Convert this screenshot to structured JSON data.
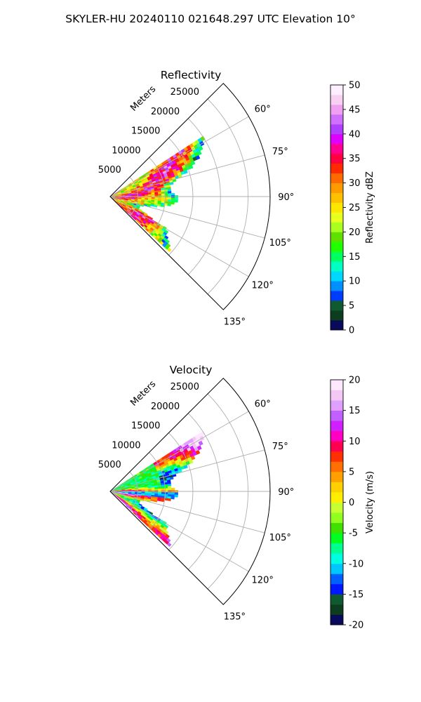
{
  "title": "SKYLER-HU  20240110  021648.297 UTC Elevation 10°",
  "chart_data": [
    {
      "type": "polar-sector",
      "title": "Reflectivity",
      "radial_label": "Meters",
      "radial_ticks": [
        "5000",
        "10000",
        "15000",
        "20000",
        "25000"
      ],
      "radial_tick_values": [
        5000,
        10000,
        15000,
        20000,
        25000
      ],
      "rlim": [
        0,
        29000
      ],
      "theta_ticks": [
        "60°",
        "75°",
        "90°",
        "105°",
        "120°",
        "135°"
      ],
      "theta_tick_values": [
        60,
        75,
        90,
        105,
        120,
        135
      ],
      "thetalim": [
        45,
        135
      ],
      "grid": true,
      "colorbar": {
        "label": "Reflectivity dBZ",
        "ticks": [
          "0",
          "5",
          "10",
          "15",
          "20",
          "25",
          "30",
          "35",
          "40",
          "45",
          "50"
        ],
        "tick_values": [
          0,
          5,
          10,
          15,
          20,
          25,
          30,
          35,
          40,
          45,
          50
        ],
        "range": [
          0,
          50
        ],
        "colors": [
          "#0a0a5a",
          "#0b3d1e",
          "#0f5a2f",
          "#003cff",
          "#0090ff",
          "#00d8ff",
          "#00ffc0",
          "#00ff60",
          "#20ff00",
          "#60e000",
          "#a8ff20",
          "#e8ff20",
          "#ffe600",
          "#ffc000",
          "#ff9a00",
          "#ff6a00",
          "#ff2a00",
          "#ff0040",
          "#ff0090",
          "#e000ff",
          "#b040ff",
          "#d070ff",
          "#f0a0f0",
          "#f8d0f0",
          "#ffeeff"
        ]
      },
      "field": {
        "theta_range": [
          57,
          133
        ],
        "typical_value": 34,
        "value_range": [
          18,
          44
        ]
      }
    },
    {
      "type": "polar-sector",
      "title": "Velocity",
      "radial_label": "Meters",
      "radial_ticks": [
        "5000",
        "10000",
        "15000",
        "20000",
        "25000"
      ],
      "radial_tick_values": [
        5000,
        10000,
        15000,
        20000,
        25000
      ],
      "rlim": [
        0,
        29000
      ],
      "theta_ticks": [
        "60°",
        "75°",
        "90°",
        "105°",
        "120°",
        "135°"
      ],
      "theta_tick_values": [
        60,
        75,
        90,
        105,
        120,
        135
      ],
      "thetalim": [
        45,
        135
      ],
      "grid": true,
      "colorbar": {
        "label": "Velocity (m/s)",
        "ticks": [
          "-20",
          "-15",
          "-10",
          "-5",
          "0",
          "5",
          "10",
          "15",
          "20"
        ],
        "tick_values": [
          -20,
          -15,
          -10,
          -5,
          0,
          5,
          10,
          15,
          20
        ],
        "range": [
          -20,
          20
        ],
        "colors": [
          "#0a0a5a",
          "#0b3d1e",
          "#0f5a2f",
          "#0018ff",
          "#0060ff",
          "#00c8ff",
          "#00ffe0",
          "#00ff90",
          "#00ff20",
          "#40e000",
          "#90ff20",
          "#c8ff30",
          "#ffee00",
          "#ffd000",
          "#ffa000",
          "#ff7000",
          "#ff3000",
          "#ff0050",
          "#ff00c0",
          "#d020ff",
          "#c060ff",
          "#e0a0ff",
          "#f4c8f4",
          "#ffe8ff"
        ]
      },
      "field": {
        "theta_range": [
          57,
          133
        ],
        "typical_value": 2,
        "value_range": [
          -14,
          16
        ]
      }
    }
  ]
}
